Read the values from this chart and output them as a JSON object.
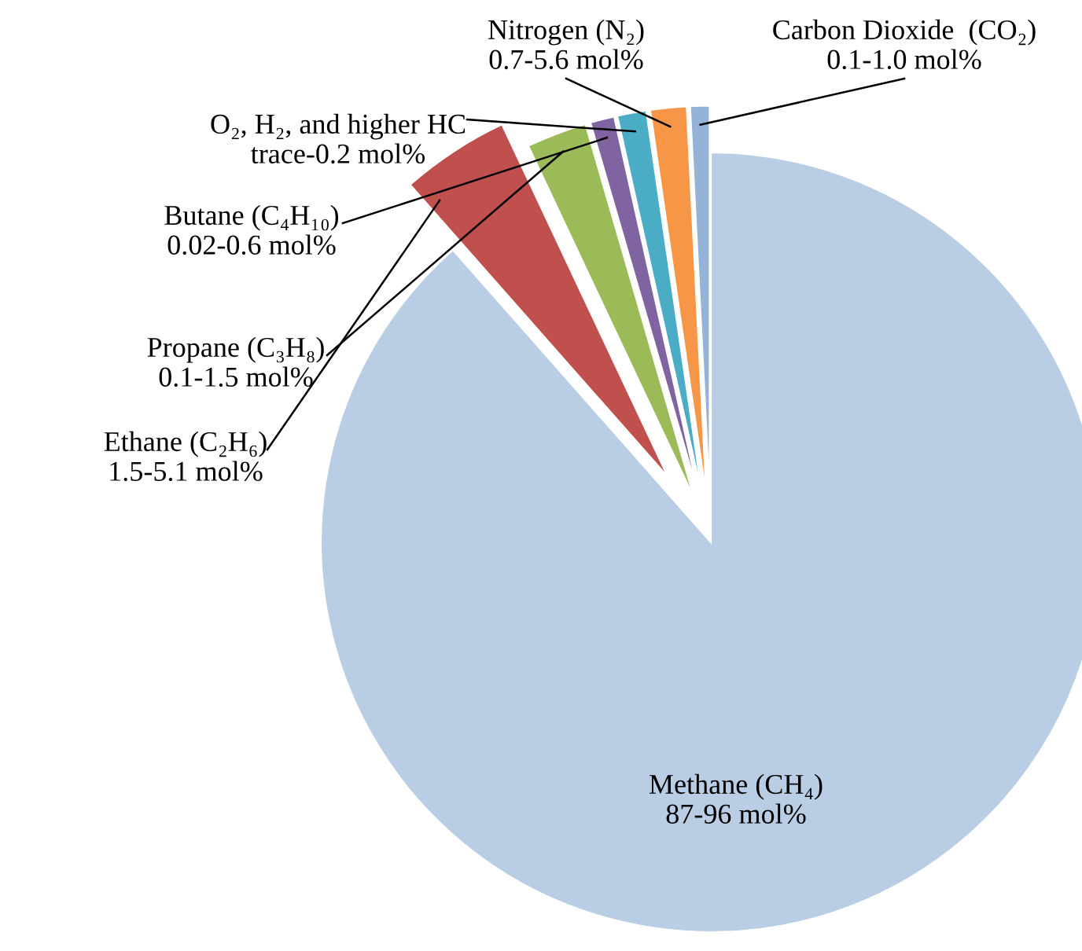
{
  "chart_data": {
    "type": "pie",
    "categories": [
      "Methane (CH₄)\n87-96 mol%",
      "Ethane (C₂H₆)\n1.5-5.1 mol%",
      "Propane (C₃H₈)\n0.1-1.5 mol%",
      "Butane (C₄H₁₀)\n0.02-0.6 mol%",
      "O₂, H₂, and higher HC\ntrace-0.2 mol%",
      "Nitrogen (N₂)\n0.7-5.6 mol%",
      "Carbon Dioxide  (CO₂)\n0.1-1.0 mol%"
    ],
    "values": [
      88.5,
      4.5,
      2.5,
      1,
      1.2,
      1.5,
      0.8
    ],
    "colors": [
      "#b9cde5",
      "#c0504d",
      "#9bbb59",
      "#8064a2",
      "#4bacc6",
      "#f79646",
      "#95b3d7"
    ],
    "legend": false
  }
}
